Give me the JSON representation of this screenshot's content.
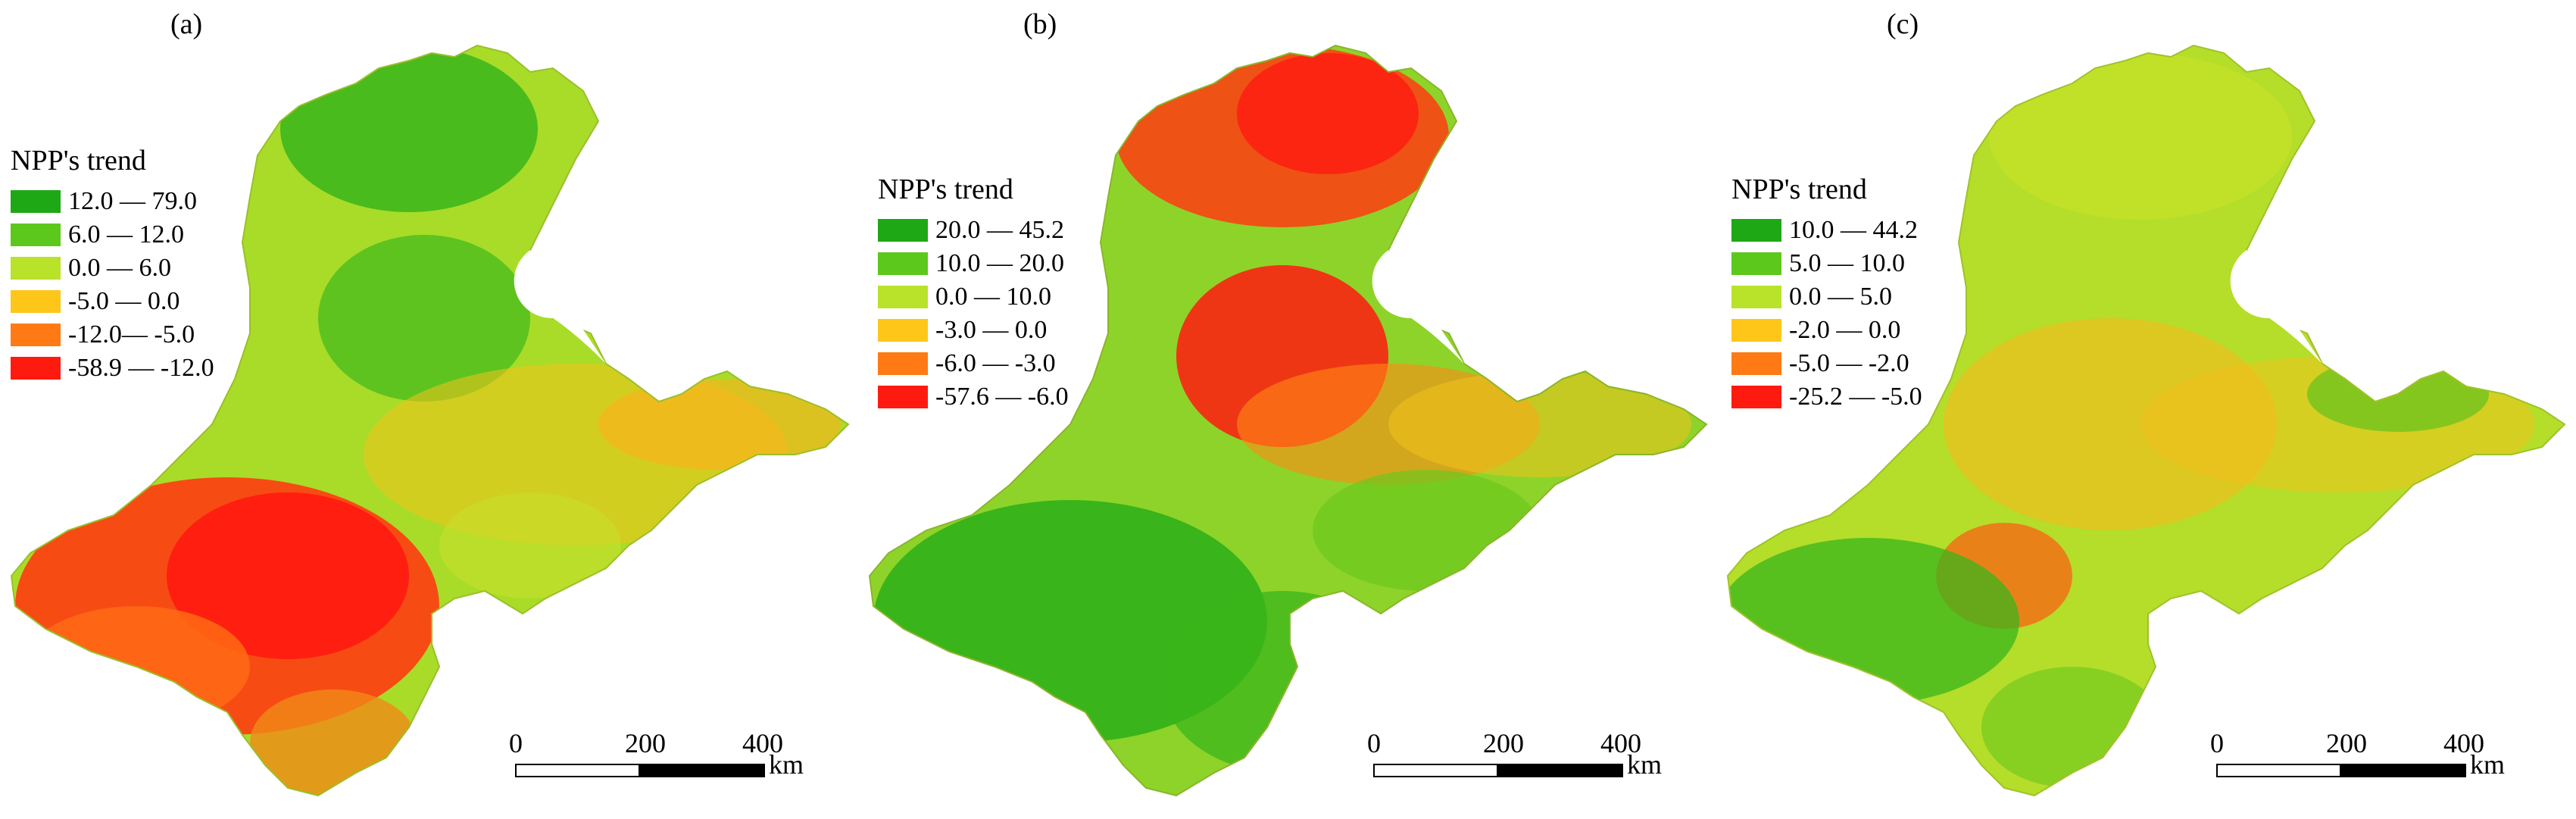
{
  "figure": {
    "panels": [
      {
        "label": "(a)",
        "legend_title": "NPP's trend",
        "legend": [
          {
            "range": "12.0 — 79.0",
            "color": "#1fa815"
          },
          {
            "range": "6.0 — 12.0",
            "color": "#5cc81c"
          },
          {
            "range": "0.0 — 6.0",
            "color": "#b9e22a"
          },
          {
            "range": "-5.0 — 0.0",
            "color": "#ffc61a"
          },
          {
            "range": "-12.0— -5.0",
            "color": "#ff7a14"
          },
          {
            "range": "-58.9 — -12.0",
            "color": "#ff1a10"
          }
        ],
        "scale_ticks": [
          "0",
          "200",
          "400"
        ],
        "scale_unit": "km",
        "map_base_color": "#a8dc28"
      },
      {
        "label": "(b)",
        "legend_title": "NPP's trend",
        "legend": [
          {
            "range": "20.0 — 45.2",
            "color": "#1fa815"
          },
          {
            "range": "10.0 — 20.0",
            "color": "#5cc81c"
          },
          {
            "range": "0.0 — 10.0",
            "color": "#b9e22a"
          },
          {
            "range": "-3.0 — 0.0",
            "color": "#ffc61a"
          },
          {
            "range": "-6.0 — -3.0",
            "color": "#ff7a14"
          },
          {
            "range": "-57.6 — -6.0",
            "color": "#ff1a10"
          }
        ],
        "scale_ticks": [
          "0",
          "200",
          "400"
        ],
        "scale_unit": "km",
        "map_base_color": "#8ed32a"
      },
      {
        "label": "(c)",
        "legend_title": "NPP's trend",
        "legend": [
          {
            "range": "10.0 — 44.2",
            "color": "#1fa815"
          },
          {
            "range": "5.0 — 10.0",
            "color": "#5cc81c"
          },
          {
            "range": "0.0 — 5.0",
            "color": "#b9e22a"
          },
          {
            "range": "-2.0 — 0.0",
            "color": "#ffc61a"
          },
          {
            "range": "-5.0 — -2.0",
            "color": "#ff7a14"
          },
          {
            "range": "-25.2 — -5.0",
            "color": "#ff1a10"
          }
        ],
        "scale_ticks": [
          "0",
          "200",
          "400"
        ],
        "scale_unit": "km",
        "map_base_color": "#b4de2a"
      }
    ]
  }
}
